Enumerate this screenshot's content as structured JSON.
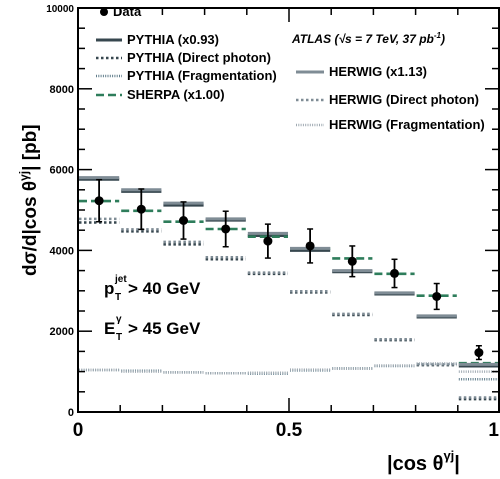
{
  "chart_data": {
    "type": "scatter",
    "xlabel": "|cos θ^γj|",
    "ylabel": "dσ/d|cos θ^γj| [pb]",
    "xlim": [
      0,
      1
    ],
    "ylim": [
      0,
      10000
    ],
    "x_ticks": [
      "0",
      "0.5",
      "1"
    ],
    "y_ticks": [
      "0",
      "2000",
      "4000",
      "6000",
      "8000",
      "10000"
    ],
    "bins": [
      [
        0,
        0.1
      ],
      [
        0.1,
        0.2
      ],
      [
        0.2,
        0.3
      ],
      [
        0.3,
        0.4
      ],
      [
        0.4,
        0.5
      ],
      [
        0.5,
        0.6
      ],
      [
        0.6,
        0.7
      ],
      [
        0.7,
        0.8
      ],
      [
        0.8,
        0.9
      ],
      [
        0.9,
        1.0
      ]
    ],
    "series": [
      {
        "name": "Data",
        "x": [
          0.05,
          0.15,
          0.25,
          0.35,
          0.45,
          0.55,
          0.65,
          0.75,
          0.85,
          0.95
        ],
        "values": [
          5230,
          5020,
          4740,
          4530,
          4230,
          4110,
          3730,
          3430,
          2860,
          1470
        ],
        "errors": [
          520,
          500,
          460,
          440,
          420,
          420,
          380,
          350,
          320,
          170
        ],
        "color": "#000000",
        "style": "points"
      },
      {
        "name": "PYTHIA (x0.93)",
        "values": [
          5760,
          5460,
          5120,
          4750,
          4370,
          4000,
          3470,
          2920,
          2350,
          1140
        ],
        "color": "#37474f",
        "style": "solid"
      },
      {
        "name": "PYTHIA (Direct photon)",
        "values": [
          4690,
          4470,
          4150,
          3780,
          3420,
          2960,
          2400,
          1780,
          1160,
          320
        ],
        "color": "#37474f",
        "style": "dotted"
      },
      {
        "name": "PYTHIA (Fragmentation)",
        "values": [
          1040,
          1020,
          980,
          960,
          950,
          1030,
          1080,
          1140,
          1190,
          810
        ],
        "color": "#607d8b",
        "style": "fine"
      },
      {
        "name": "SHERPA (x1.00)",
        "values": [
          5220,
          4980,
          4710,
          4530,
          4340,
          4050,
          3800,
          3420,
          2880,
          1210
        ],
        "color": "#2e7d5b",
        "style": "dashed"
      },
      {
        "name": "HERWIG (x1.13)",
        "values": [
          5800,
          5500,
          5170,
          4780,
          4420,
          4050,
          3500,
          2950,
          2380,
          1180
        ],
        "color": "#7f8c95",
        "style": "solid"
      },
      {
        "name": "HERWIG (Direct photon)",
        "values": [
          4780,
          4520,
          4210,
          3830,
          3450,
          2990,
          2430,
          1800,
          1180,
          360
        ],
        "color": "#7f8c95",
        "style": "dotted"
      },
      {
        "name": "HERWIG (Fragmentation)",
        "values": [
          1040,
          1000,
          980,
          960,
          970,
          1050,
          1070,
          1150,
          1200,
          1000
        ],
        "color": "#a0aab2",
        "style": "fine"
      }
    ],
    "legend_left": [
      "Data",
      "PYTHIA (x0.93)",
      "PYTHIA (Direct photon)",
      "PYTHIA (Fragmentation)",
      "SHERPA (x1.00)"
    ],
    "legend_right": [
      "HERWIG (x1.13)",
      "HERWIG (Direct photon)",
      "HERWIG (Fragmentation)"
    ],
    "annotations": {
      "experiment": "ATLAS (",
      "sqrt": "√s",
      "energy": " = 7 TeV, 37 pb",
      "lumi_exp": "-1",
      "close": ")",
      "cut1_main": "p",
      "cut1_sup": "jet",
      "cut1_sub": "T",
      "cut1_rest": " > 40 GeV",
      "cut2_main": "E",
      "cut2_sup": "γ",
      "cut2_sub": "T",
      "cut2_rest": " > 45 GeV"
    },
    "axis_text": {
      "y_main": "dσ/d|cos θ",
      "y_sup": "γj",
      "y_tail": "| [pb]",
      "x_main": "|cos θ",
      "x_sup": "γj",
      "x_tail": "|"
    }
  }
}
